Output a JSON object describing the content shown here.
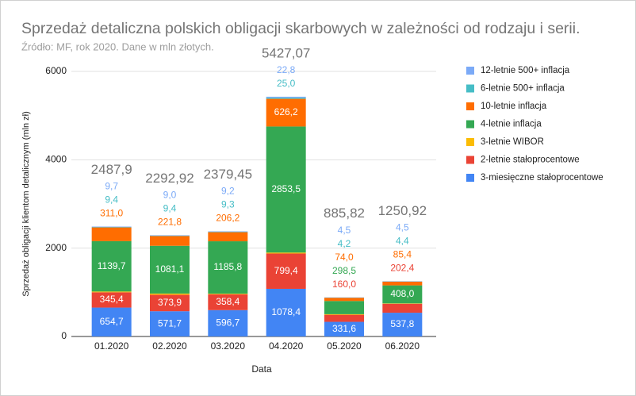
{
  "chart_data": {
    "type": "stacked_bar",
    "title": "Sprzedaż detaliczna polskich obligacji skarbowych w zależności od rodzaju i serii.",
    "subtitle": "Źródło: MF, rok 2020. Dane w mln złotych.",
    "x_label": "Data",
    "y_label": "Sprzedaż obligacji klientom detalicznym (mln zł)",
    "categories": [
      "01.2020",
      "02.2020",
      "03.2020",
      "04.2020",
      "05.2020",
      "06.2020"
    ],
    "series": [
      {
        "name": "3-miesięczne stałoprocentowe",
        "color": "#4285f4",
        "values": [
          654.7,
          571.7,
          596.7,
          1078.4,
          331.6,
          537.8
        ],
        "value_labels": [
          "654,7",
          "571,7",
          "596,7",
          "1078,4",
          "331,6",
          "537,8"
        ]
      },
      {
        "name": "2-letnie stałoprocentowe",
        "color": "#ea4335",
        "values": [
          345.4,
          373.9,
          358.4,
          799.4,
          160.0,
          202.4
        ],
        "value_labels": [
          "345,4",
          "373,9",
          "358,4",
          "799,4",
          "160,0",
          "202,4"
        ]
      },
      {
        "name": "3-letnie WIBOR",
        "color": "#fbbc04",
        "values": [
          18.0,
          26.0,
          13.9,
          21.8,
          13.0,
          8.4
        ]
      },
      {
        "name": "4-letnie inflacja",
        "color": "#34a853",
        "values": [
          1139.7,
          1081.1,
          1185.8,
          2853.5,
          298.5,
          408.0
        ],
        "value_labels": [
          "1139,7",
          "1081,1",
          "1185,8",
          "2853,5",
          "298,5",
          "408,0"
        ]
      },
      {
        "name": "10-letnie inflacja",
        "color": "#ff6d01",
        "values": [
          311.0,
          221.8,
          206.2,
          626.2,
          74.0,
          85.4
        ],
        "value_labels": [
          "311,0",
          "221,8",
          "206,2",
          "626,2",
          "74,0",
          "85,4"
        ]
      },
      {
        "name": "6-letnie 500+ inflacja",
        "color": "#46bdc6",
        "values": [
          9.4,
          9.4,
          9.3,
          25.0,
          4.2,
          4.4
        ],
        "value_labels": [
          "9,4",
          "9,4",
          "9,3",
          "25,0",
          "4,2",
          "4,4"
        ]
      },
      {
        "name": "12-letnie 500+ inflacja",
        "color": "#7baaf7",
        "values": [
          9.7,
          9.0,
          9.2,
          22.8,
          4.5,
          4.5
        ],
        "value_labels": [
          "9,7",
          "9,0",
          "9,2",
          "22,8",
          "4,5",
          "4,5"
        ]
      }
    ],
    "totals": [
      2487.9,
      2292.92,
      2379.45,
      5427.07,
      885.82,
      1250.92
    ],
    "total_labels": [
      "2487,9",
      "2292,92",
      "2379,45",
      "5427,07",
      "885,82",
      "1250,92"
    ],
    "ylim": [
      0,
      6000
    ],
    "yticks": [
      0,
      2000,
      4000,
      6000
    ],
    "grid": true,
    "legend": "right"
  }
}
